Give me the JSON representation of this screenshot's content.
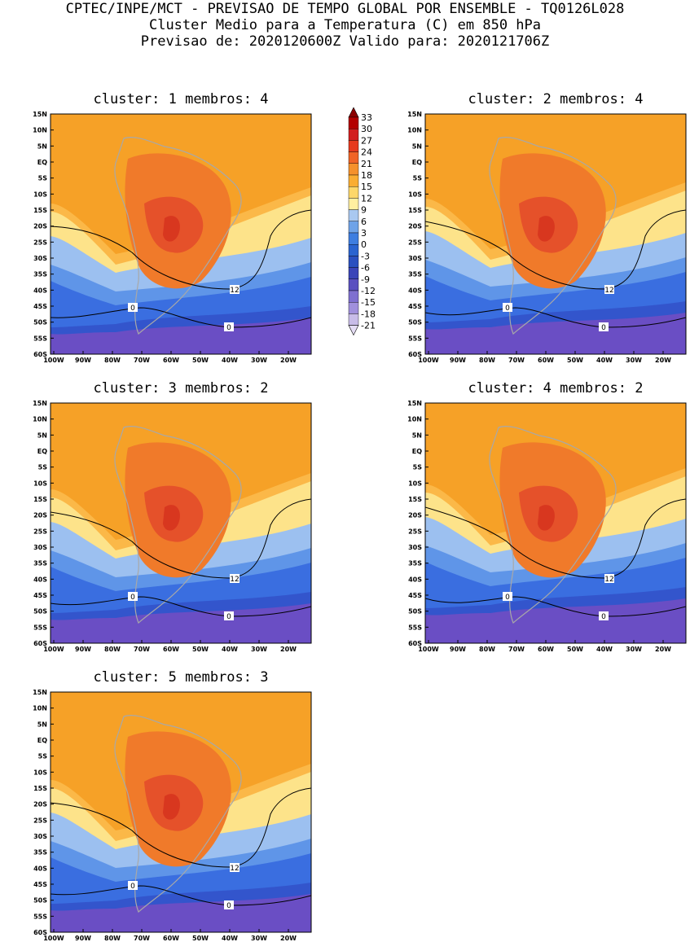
{
  "header": {
    "line1": "CPTEC/INPE/MCT - PREVISAO DE TEMPO GLOBAL POR ENSEMBLE - TQ0126L028",
    "line2": "Cluster Medio para a Temperatura (C) em 850 hPa",
    "line3": "Previsao de: 2020120600Z   Valido para: 2020121706Z"
  },
  "lat_labels": [
    "15N",
    "10N",
    "5N",
    "EQ",
    "5S",
    "10S",
    "15S",
    "20S",
    "25S",
    "30S",
    "35S",
    "40S",
    "45S",
    "50S",
    "55S",
    "60S"
  ],
  "lon_labels": [
    "100W",
    "90W",
    "80W",
    "70W",
    "60W",
    "50W",
    "40W",
    "30W",
    "20W"
  ],
  "colorbar": {
    "labels": [
      "33",
      "30",
      "27",
      "24",
      "21",
      "18",
      "15",
      "12",
      "9",
      "6",
      "3",
      "0",
      "-3",
      "-6",
      "-9",
      "-12",
      "-15",
      "-18",
      "-21"
    ],
    "colors": [
      "#8b0000",
      "#b30000",
      "#d21e1e",
      "#e63a1e",
      "#f06426",
      "#f5912b",
      "#faad32",
      "#fdd76a",
      "#ffefa0",
      "#a9c8f0",
      "#6fa3e8",
      "#3e7ee0",
      "#2a64d0",
      "#2a50c0",
      "#3a44b8",
      "#5a50c0",
      "#7f70d0",
      "#a090dc",
      "#c8bce8",
      "#e4dcf4"
    ]
  },
  "panels": [
    {
      "title": "cluster: 1   membros: 4",
      "label_12": "12",
      "label_0a": "0",
      "label_0b": "0"
    },
    {
      "title": "cluster: 2   membros: 4",
      "label_12": "12",
      "label_0a": "0",
      "label_0b": "0"
    },
    {
      "title": "cluster: 3   membros: 2",
      "label_12": "12",
      "label_0a": "0",
      "label_0b": "0"
    },
    {
      "title": "cluster: 4   membros: 2",
      "label_12": "12",
      "label_0a": "0",
      "label_0b": "0"
    },
    {
      "title": "cluster: 5   membros: 3",
      "label_12": "12",
      "label_0a": "0",
      "label_0b": "0"
    }
  ]
}
